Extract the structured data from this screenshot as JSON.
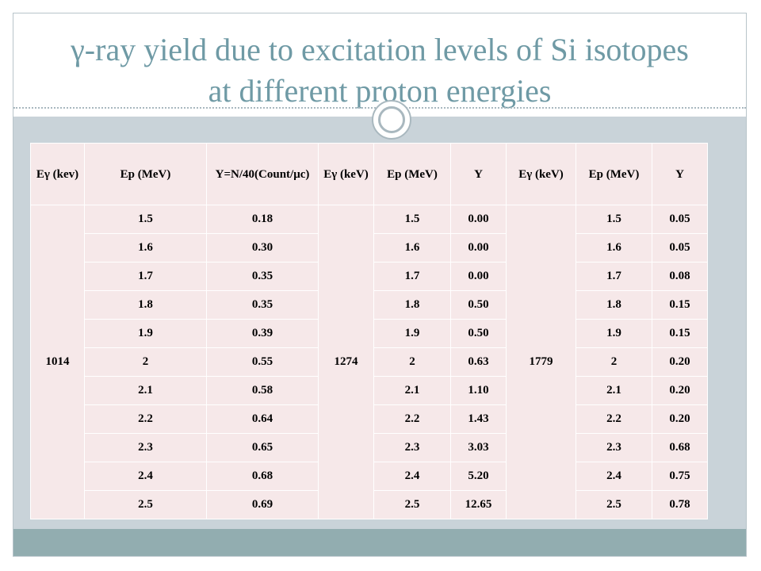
{
  "slide": {
    "title_line1": "γ-ray  yield due to excitation levels of Si isotopes",
    "title_line2": "at different proton energies"
  },
  "table": {
    "headers": [
      "Eγ (kev)",
      "Ep (MeV)",
      "Y=N/40(Count/μc)",
      "Eγ (keV)",
      "Ep (MeV)",
      "Y",
      "Eγ (keV)",
      "Ep (MeV)",
      "Y"
    ],
    "groups": [
      {
        "egamma": "1014",
        "ep": [
          "1.5",
          "1.6",
          "1.7",
          "1.8",
          "1.9",
          "2",
          "2.1",
          "2.2",
          "2.3",
          "2.4",
          "2.5"
        ],
        "y": [
          "0.18",
          "0.30",
          "0.35",
          "0.35",
          "0.39",
          "0.55",
          "0.58",
          "0.64",
          "0.65",
          "0.68",
          "0.69"
        ]
      },
      {
        "egamma": "1274",
        "ep": [
          "1.5",
          "1.6",
          "1.7",
          "1.8",
          "1.9",
          "2",
          "2.1",
          "2.2",
          "2.3",
          "2.4",
          "2.5"
        ],
        "y": [
          "0.00",
          "0.00",
          "0.00",
          "0.50",
          "0.50",
          "0.63",
          "1.10",
          "1.43",
          "3.03",
          "5.20",
          "12.65"
        ]
      },
      {
        "egamma": "1779",
        "ep": [
          "1.5",
          "1.6",
          "1.7",
          "1.8",
          "1.9",
          "2",
          "2.1",
          "2.2",
          "2.3",
          "2.4",
          "2.5"
        ],
        "y": [
          "0.05",
          "0.05",
          "0.08",
          "0.15",
          "0.15",
          "0.20",
          "0.20",
          "0.20",
          "0.68",
          "0.75",
          "0.78"
        ]
      }
    ]
  }
}
